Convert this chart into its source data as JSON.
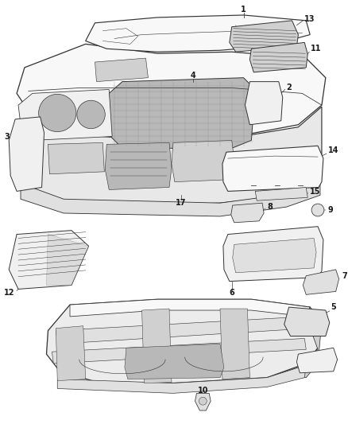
{
  "background_color": "#ffffff",
  "fig_width": 4.38,
  "fig_height": 5.33,
  "dpi": 100,
  "label_fontsize": 7,
  "label_color": "#1a1a1a",
  "line_color": "#333333",
  "line_width": 0.7
}
